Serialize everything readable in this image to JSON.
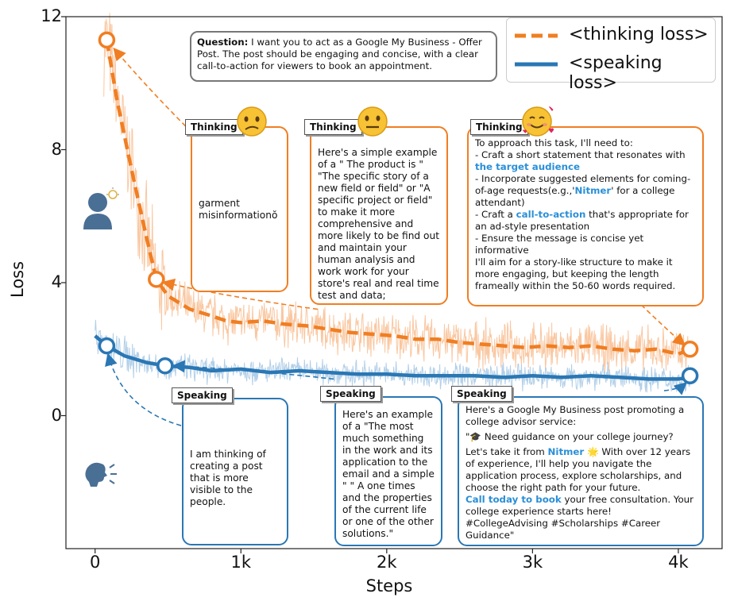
{
  "chart_data": {
    "type": "line",
    "xlabel": "Steps",
    "ylabel": "Loss",
    "xlim": [
      -200,
      4300
    ],
    "ylim": [
      -4,
      12
    ],
    "x_ticks": [
      0,
      1000,
      2000,
      3000,
      4000
    ],
    "x_tick_labels": [
      "0",
      "1k",
      "2k",
      "3k",
      "4k"
    ],
    "y_ticks": [
      0,
      4,
      8,
      12
    ],
    "y_tick_labels": [
      "0",
      "4",
      "8",
      "12"
    ],
    "legend_position": "top-right",
    "series": [
      {
        "name": "<thinking loss>",
        "color": "#f07e22",
        "style": "dashed",
        "x": [
          80,
          150,
          250,
          350,
          420,
          500,
          650,
          800,
          900,
          1000,
          1150,
          1300,
          1450,
          1600,
          1750,
          1900,
          2050,
          2200,
          2350,
          2500,
          2650,
          2800,
          2950,
          3100,
          3250,
          3400,
          3550,
          3700,
          3850,
          4000,
          4080
        ],
        "y": [
          11.3,
          9.5,
          7.4,
          5.4,
          4.1,
          3.6,
          3.2,
          3.0,
          2.85,
          2.8,
          2.85,
          2.75,
          2.7,
          2.6,
          2.5,
          2.45,
          2.4,
          2.3,
          2.3,
          2.2,
          2.15,
          2.1,
          2.05,
          2.1,
          2.05,
          2.1,
          2.0,
          1.95,
          2.0,
          1.85,
          2.0
        ]
      },
      {
        "name": "<speaking loss>",
        "color": "#2a77b4",
        "style": "solid",
        "x": [
          0,
          80,
          200,
          350,
          480,
          650,
          800,
          1000,
          1200,
          1400,
          1600,
          1800,
          2000,
          2200,
          2400,
          2600,
          2800,
          3000,
          3200,
          3400,
          3600,
          3800,
          4000,
          4080
        ],
        "y": [
          2.4,
          2.1,
          1.8,
          1.6,
          1.5,
          1.45,
          1.35,
          1.4,
          1.3,
          1.35,
          1.3,
          1.25,
          1.25,
          1.2,
          1.2,
          1.2,
          1.15,
          1.2,
          1.15,
          1.2,
          1.15,
          1.1,
          1.1,
          1.15
        ]
      }
    ],
    "markers": {
      "thinking": [
        {
          "x": 80,
          "y": 11.3
        },
        {
          "x": 420,
          "y": 4.1
        },
        {
          "x": 4080,
          "y": 2.0
        }
      ],
      "speaking": [
        {
          "x": 80,
          "y": 2.1
        },
        {
          "x": 480,
          "y": 1.5
        },
        {
          "x": 4080,
          "y": 1.2
        }
      ]
    }
  },
  "question": {
    "label": "Question:",
    "text": " I want you to act as a Google My Business - Offer Post. The post should be engaging and concise, with a clear call-to-action for viewers to book an appointment."
  },
  "thinking_tag": "Thinking",
  "speaking_tag": "Speaking",
  "thinking_boxes": [
    {
      "text": "garment misinformationŏ"
    },
    {
      "text": " Here's a simple example of a \" The product is \" \"The specific story of a new field or field\" or \"A specific project or field\" to make it more comprehensive and more likely to be find out and maintain your human analysis and work work for your store's real and real time test and data;"
    },
    {
      "l1": "To approach this task, I'll need to:",
      "l2": "- Craft a short statement that resonates with ",
      "l2h": "the target audience",
      "l3": "- Incorporate suggested elements for coming-of-age requests(e.g.,'",
      "l3h": "Nitmer",
      "l3b": "' for a college attendant)",
      "l4": "- Craft a ",
      "l4h": "call-to-action",
      "l4b": " that's appropriate for an ad-style presentation",
      "l5": "- Ensure the message is concise yet informative",
      "l6": "I'll aim for a story-like structure to make it more engaging, but keeping the length frameally within the 50-60 words required."
    }
  ],
  "speaking_boxes": [
    {
      "text": "I am thinking of creating a post that is more visible to the people."
    },
    {
      "text": "Here's an example of a \"The most much something in the work and its application to the email and a simple \" \" A one times and the properties of the current life or one of the other solutions.\""
    },
    {
      "l1": "Here's a Google My Business post promoting a college advisor service:",
      "l2": "\"🎓 Need guidance on your college journey?",
      "l3a": "Let's take it from ",
      "l3h": "Nitmer",
      "l3b": " 🌟 With over 12 years of experience, I'll help you navigate the application process, explore scholarships, and choose the right path for your future.",
      "l4h": "Call today to book",
      "l4b": " your free consultation. Your college experience starts here! #CollegeAdvising #Scholarships #Career Guidance\""
    }
  ],
  "icons": [
    "thinking-person-icon",
    "speaking-person-icon",
    "confused-face-icon",
    "neutral-face-icon",
    "smiling-hearts-face-icon"
  ]
}
